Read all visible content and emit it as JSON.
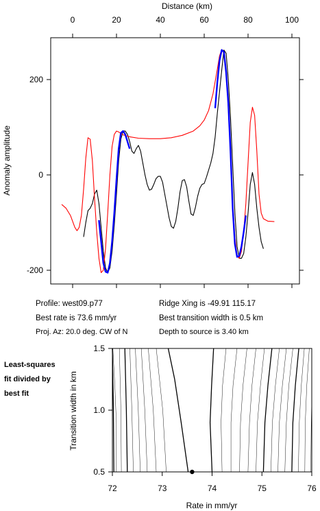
{
  "chart_data": [
    {
      "type": "line",
      "xlabel": "Distance (km)",
      "ylabel": "Anomaly amplitude",
      "xlim": [
        -10,
        100
      ],
      "ylim": [
        -225,
        295
      ],
      "xticks": [
        0,
        20,
        40,
        60,
        80,
        100
      ],
      "yticks": [
        -200,
        0,
        200
      ],
      "x_axis_position": "top",
      "grid": false,
      "series_colors": [
        "#000000",
        "#ff0000",
        "#0000ff"
      ],
      "series": [
        {
          "points": [
            [
              5,
              -130
            ],
            [
              6,
              -100
            ],
            [
              7,
              -75
            ],
            [
              8,
              -70
            ],
            [
              9,
              -60
            ],
            [
              10,
              -40
            ],
            [
              11,
              -32
            ],
            [
              12,
              -60
            ],
            [
              13,
              -110
            ],
            [
              14,
              -160
            ],
            [
              15,
              -195
            ],
            [
              16,
              -205
            ],
            [
              17,
              -195
            ],
            [
              18,
              -160
            ],
            [
              19,
              -105
            ],
            [
              20,
              -40
            ],
            [
              21,
              30
            ],
            [
              22,
              75
            ],
            [
              23,
              92
            ],
            [
              24,
              92
            ],
            [
              25,
              85
            ],
            [
              26,
              70
            ],
            [
              27,
              50
            ],
            [
              28,
              45
            ],
            [
              29,
              55
            ],
            [
              30,
              62
            ],
            [
              31,
              50
            ],
            [
              32,
              25
            ],
            [
              33,
              0
            ],
            [
              34,
              -20
            ],
            [
              35,
              -32
            ],
            [
              36,
              -30
            ],
            [
              37,
              -20
            ],
            [
              38,
              -8
            ],
            [
              39,
              -3
            ],
            [
              40,
              -3
            ],
            [
              41,
              -15
            ],
            [
              42,
              -40
            ],
            [
              43,
              -65
            ],
            [
              44,
              -90
            ],
            [
              45,
              -108
            ],
            [
              46,
              -112
            ],
            [
              47,
              -98
            ],
            [
              48,
              -70
            ],
            [
              49,
              -35
            ],
            [
              50,
              -12
            ],
            [
              51,
              -10
            ],
            [
              52,
              -25
            ],
            [
              53,
              -55
            ],
            [
              54,
              -82
            ],
            [
              55,
              -85
            ],
            [
              56,
              -68
            ],
            [
              57,
              -45
            ],
            [
              58,
              -28
            ],
            [
              59,
              -20
            ],
            [
              60,
              -18
            ],
            [
              61,
              -5
            ],
            [
              62,
              10
            ],
            [
              63,
              25
            ],
            [
              64,
              45
            ],
            [
              65,
              80
            ],
            [
              66,
              130
            ],
            [
              67,
              175
            ],
            [
              68,
              220
            ],
            [
              69,
              262
            ],
            [
              70,
              255
            ],
            [
              71,
              200
            ],
            [
              72,
              120
            ],
            [
              73,
              20
            ],
            [
              74,
              -80
            ],
            [
              75,
              -150
            ],
            [
              76,
              -175
            ],
            [
              77,
              -175
            ],
            [
              78,
              -165
            ],
            [
              79,
              -130
            ],
            [
              80,
              -80
            ],
            [
              81,
              -20
            ],
            [
              82,
              5
            ],
            [
              83,
              -20
            ],
            [
              84,
              -70
            ],
            [
              85,
              -110
            ],
            [
              86,
              -140
            ],
            [
              87,
              -155
            ]
          ]
        },
        {
          "points": [
            [
              -5,
              -62
            ],
            [
              -3,
              -70
            ],
            [
              -1,
              -85
            ],
            [
              1,
              -110
            ],
            [
              2,
              -117
            ],
            [
              3,
              -110
            ],
            [
              4,
              -85
            ],
            [
              5,
              -30
            ],
            [
              6,
              35
            ],
            [
              7,
              78
            ],
            [
              8,
              75
            ],
            [
              9,
              30
            ],
            [
              10,
              -50
            ],
            [
              11,
              -120
            ],
            [
              12,
              -175
            ],
            [
              13,
              -205
            ],
            [
              14,
              -200
            ],
            [
              15,
              -155
            ],
            [
              16,
              -80
            ],
            [
              17,
              0
            ],
            [
              18,
              60
            ],
            [
              19,
              85
            ],
            [
              20,
              92
            ],
            [
              21,
              90
            ],
            [
              23,
              84
            ],
            [
              26,
              80
            ],
            [
              30,
              77
            ],
            [
              35,
              76
            ],
            [
              40,
              76
            ],
            [
              45,
              78
            ],
            [
              50,
              83
            ],
            [
              55,
              92
            ],
            [
              58,
              103
            ],
            [
              60,
              115
            ],
            [
              62,
              135
            ],
            [
              64,
              170
            ],
            [
              66,
              222
            ],
            [
              67,
              250
            ],
            [
              68,
              263
            ],
            [
              69,
              255
            ],
            [
              70,
              210
            ],
            [
              71,
              140
            ],
            [
              72,
              40
            ],
            [
              73,
              -60
            ],
            [
              74,
              -130
            ],
            [
              75,
              -170
            ],
            [
              76,
              -175
            ],
            [
              77,
              -160
            ],
            [
              78,
              -120
            ],
            [
              79,
              -60
            ],
            [
              80,
              25
            ],
            [
              81,
              110
            ],
            [
              82,
              142
            ],
            [
              83,
              125
            ],
            [
              84,
              50
            ],
            [
              85,
              -40
            ],
            [
              86,
              -80
            ],
            [
              87,
              -92
            ],
            [
              89,
              -97
            ],
            [
              92,
              -98
            ]
          ]
        },
        {
          "points": [
            [
              12,
              -95
            ],
            [
              13,
              -140
            ],
            [
              14,
              -185
            ],
            [
              15,
              -203
            ],
            [
              16,
              -205
            ],
            [
              17,
              -185
            ],
            [
              18,
              -140
            ],
            [
              19,
              -80
            ],
            [
              20,
              -10
            ],
            [
              21,
              55
            ],
            [
              22,
              88
            ],
            [
              23,
              92
            ],
            [
              24,
              85
            ],
            [
              25,
              70
            ],
            [
              26,
              55
            ]
          ]
        },
        {
          "points": [
            [
              65,
              140
            ],
            [
              66,
              195
            ],
            [
              67,
              240
            ],
            [
              68,
              262
            ],
            [
              69,
              258
            ],
            [
              70,
              215
            ],
            [
              71,
              150
            ],
            [
              72,
              50
            ],
            [
              73,
              -70
            ],
            [
              74,
              -145
            ],
            [
              75,
              -172
            ],
            [
              76,
              -170
            ],
            [
              77,
              -150
            ],
            [
              78,
              -120
            ],
            [
              79,
              -85
            ]
          ]
        }
      ]
    },
    {
      "type": "contour",
      "xlabel": "Rate in mm/yr",
      "ylabel": "Transition width in km",
      "xlim": [
        72,
        76
      ],
      "ylim": [
        0.5,
        1.5
      ],
      "xticks": [
        72,
        73,
        74,
        75,
        76
      ],
      "yticks": [
        0.5,
        1.0,
        1.5
      ],
      "best_fit_point": [
        73.6,
        0.5
      ],
      "contours": [
        [
          [
            72.03,
            0.5
          ],
          [
            72.02,
            1.0
          ],
          [
            72.0,
            1.5
          ]
        ],
        [
          [
            72.08,
            0.5
          ],
          [
            72.08,
            0.9
          ],
          [
            72.05,
            1.2
          ],
          [
            72.01,
            1.5
          ]
        ],
        [
          [
            72.18,
            0.5
          ],
          [
            72.17,
            1.0
          ],
          [
            72.14,
            1.5
          ]
        ],
        [
          [
            72.3,
            0.5
          ],
          [
            72.28,
            1.0
          ],
          [
            72.25,
            1.5
          ]
        ],
        [
          [
            72.42,
            0.5
          ],
          [
            72.39,
            1.0
          ],
          [
            72.35,
            1.5
          ]
        ],
        [
          [
            72.56,
            0.5
          ],
          [
            72.52,
            1.0
          ],
          [
            72.46,
            1.5
          ]
        ],
        [
          [
            72.7,
            0.5
          ],
          [
            72.65,
            1.0
          ],
          [
            72.58,
            1.5
          ]
        ],
        [
          [
            72.88,
            0.5
          ],
          [
            72.82,
            1.0
          ],
          [
            72.72,
            1.5
          ]
        ],
        [
          [
            73.08,
            0.5
          ],
          [
            73.01,
            1.0
          ],
          [
            72.88,
            1.5
          ]
        ],
        [
          [
            73.52,
            0.5
          ],
          [
            73.38,
            0.9
          ],
          [
            73.25,
            1.25
          ],
          [
            73.12,
            1.5
          ]
        ],
        [
          [
            74.0,
            0.5
          ],
          [
            73.96,
            0.9
          ],
          [
            73.99,
            1.2
          ],
          [
            74.03,
            1.5
          ]
        ],
        [
          [
            74.2,
            0.5
          ],
          [
            74.18,
            0.9
          ],
          [
            74.21,
            1.2
          ],
          [
            74.28,
            1.5
          ]
        ],
        [
          [
            74.38,
            0.5
          ],
          [
            74.38,
            0.9
          ],
          [
            74.42,
            1.2
          ],
          [
            74.5,
            1.5
          ]
        ],
        [
          [
            74.55,
            0.5
          ],
          [
            74.57,
            0.9
          ],
          [
            74.62,
            1.2
          ],
          [
            74.7,
            1.5
          ]
        ],
        [
          [
            74.72,
            0.5
          ],
          [
            74.75,
            0.9
          ],
          [
            74.8,
            1.2
          ],
          [
            74.88,
            1.5
          ]
        ],
        [
          [
            74.88,
            0.5
          ],
          [
            74.91,
            0.9
          ],
          [
            74.97,
            1.2
          ],
          [
            75.05,
            1.5
          ]
        ],
        [
          [
            75.03,
            0.5
          ],
          [
            75.06,
            0.9
          ],
          [
            75.12,
            1.2
          ],
          [
            75.2,
            1.5
          ]
        ],
        [
          [
            75.18,
            0.5
          ],
          [
            75.21,
            0.9
          ],
          [
            75.27,
            1.2
          ],
          [
            75.35,
            1.5
          ]
        ],
        [
          [
            75.32,
            0.5
          ],
          [
            75.35,
            0.9
          ],
          [
            75.41,
            1.2
          ],
          [
            75.49,
            1.5
          ]
        ],
        [
          [
            75.46,
            0.5
          ],
          [
            75.49,
            0.9
          ],
          [
            75.54,
            1.2
          ],
          [
            75.62,
            1.5
          ]
        ],
        [
          [
            75.6,
            0.5
          ],
          [
            75.62,
            0.9
          ],
          [
            75.67,
            1.2
          ],
          [
            75.74,
            1.5
          ]
        ],
        [
          [
            75.73,
            0.5
          ],
          [
            75.75,
            0.9
          ],
          [
            75.79,
            1.2
          ],
          [
            75.85,
            1.5
          ]
        ],
        [
          [
            75.86,
            0.5
          ],
          [
            75.87,
            0.9
          ],
          [
            75.9,
            1.2
          ],
          [
            75.95,
            1.5
          ]
        ],
        [
          [
            75.98,
            0.5
          ],
          [
            75.99,
            0.9
          ],
          [
            76.0,
            1.1
          ]
        ]
      ],
      "bold_contours": [
        0,
        3,
        9,
        10,
        16,
        20
      ]
    }
  ],
  "info": {
    "profile": "Profile: west09.p77",
    "best_rate": "Best rate is 73.6 mm/yr",
    "proj_az": "Proj. Az: 20.0 deg. CW of N",
    "ridge_xing": "Ridge Xing is -49.91 115.17",
    "best_transition": "Best transition width is 0.5 km",
    "depth": "Depth to source is   3.40 km"
  },
  "side_note": [
    "Least-squares",
    "fit divided by",
    "best fit"
  ]
}
